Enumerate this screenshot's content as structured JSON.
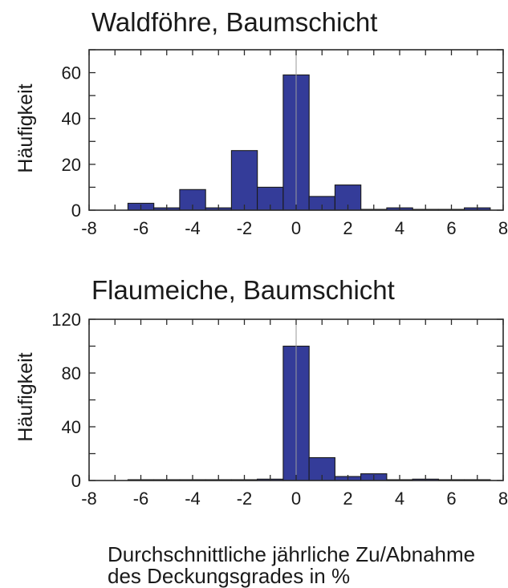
{
  "colors": {
    "bar_fill": "#343c99",
    "bar_edge": "#1a1a1a",
    "axis": "#2a2a2a",
    "zero_line": "#9a9a9a"
  },
  "xlabel_lines": [
    "Durchschnittliche jährliche Zu/Abnahme",
    "des Deckungsgrades in %"
  ],
  "chart_data": [
    {
      "type": "bar",
      "title": "Waldföhre, Baumschicht",
      "ylabel": "Häufigkeit",
      "xlabel": "Durchschnittliche jährliche Zu/Abnahme des Deckungsgrades in %",
      "xlim": [
        -8,
        8
      ],
      "ylim": [
        0,
        70
      ],
      "xticks": [
        -8,
        -6,
        -4,
        -2,
        0,
        2,
        4,
        6,
        8
      ],
      "yticks": [
        0,
        20,
        40,
        60
      ],
      "bin_width": 1,
      "bin_centers": [
        -6,
        -5,
        -4,
        -3,
        -2,
        -1,
        0,
        1,
        2,
        3,
        4,
        5,
        6,
        7
      ],
      "values": [
        3,
        1,
        9,
        1,
        26,
        10,
        59,
        6,
        11,
        0,
        1,
        0,
        0,
        1
      ],
      "grid": false
    },
    {
      "type": "bar",
      "title": "Flaumeiche, Baumschicht",
      "ylabel": "Häufigkeit",
      "xlabel": "Durchschnittliche jährliche Zu/Abnahme des Deckungsgrades in %",
      "xlim": [
        -8,
        8
      ],
      "ylim": [
        0,
        120
      ],
      "xticks": [
        -8,
        -6,
        -4,
        -2,
        0,
        2,
        4,
        6,
        8
      ],
      "yticks": [
        0,
        40,
        80,
        120
      ],
      "bin_width": 1,
      "bin_centers": [
        -6,
        -5,
        -4,
        -3,
        -2,
        -1,
        0,
        1,
        2,
        3,
        4,
        5,
        6,
        7
      ],
      "values": [
        0,
        0,
        0,
        0,
        0,
        1,
        100,
        17,
        3,
        5,
        0,
        1,
        0,
        0
      ],
      "grid": false
    }
  ]
}
